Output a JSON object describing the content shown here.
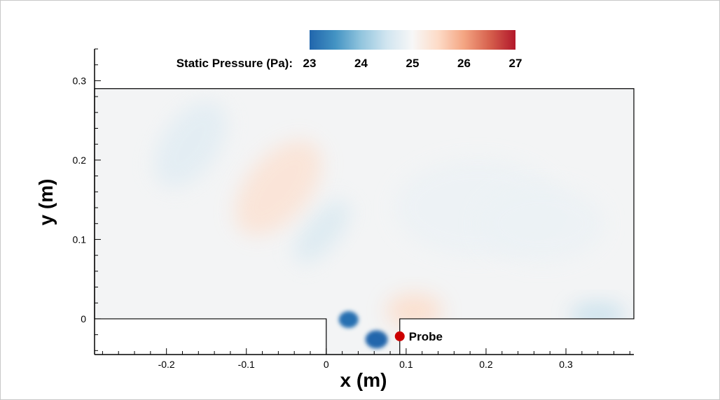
{
  "chart_data": {
    "type": "heatmap",
    "field": "Static Pressure (Pa)",
    "xlabel": "x (m)",
    "ylabel": "y (m)",
    "xlim": [
      -0.29,
      0.385
    ],
    "ylim": [
      -0.045,
      0.34
    ],
    "x_ticks": [
      -0.2,
      -0.1,
      0,
      0.1,
      0.2,
      0.3
    ],
    "x_tick_labels": [
      "-0.2",
      "-0.1",
      "0",
      "0.1",
      "0.2",
      "0.3"
    ],
    "y_ticks": [
      0,
      0.1,
      0.2,
      0.3
    ],
    "y_tick_labels": [
      "0",
      "0.1",
      "0.2",
      "0.3"
    ],
    "domain": {
      "outer": {
        "x": [
          -0.29,
          0.385
        ],
        "y": [
          0,
          0.29
        ]
      },
      "cavity": {
        "x": [
          0,
          0.092
        ],
        "y": [
          -0.045,
          0
        ]
      }
    },
    "colorbar": {
      "label": "Static Pressure (Pa):",
      "min": 23,
      "max": 27,
      "ticks": [
        23,
        24,
        25,
        26,
        27
      ],
      "tick_labels": [
        "23",
        "24",
        "25",
        "26",
        "27"
      ],
      "colors": [
        "#2166ac",
        "#4393c3",
        "#92c5de",
        "#d1e5f0",
        "#f7f7f7",
        "#fddbc7",
        "#f4a582",
        "#d6604d",
        "#b2182b"
      ]
    },
    "probe": {
      "label": "Probe",
      "x": 0.092,
      "y": -0.022,
      "color": "#cc0000"
    },
    "features": [
      {
        "x": 0.028,
        "y": -0.001,
        "pressure": 23.1
      },
      {
        "x": 0.063,
        "y": -0.026,
        "pressure": 23.0
      },
      {
        "x": -0.005,
        "y": 0.11,
        "pressure": 24.6
      },
      {
        "x": -0.17,
        "y": 0.22,
        "pressure": 24.7
      },
      {
        "x": -0.06,
        "y": 0.165,
        "pressure": 25.4
      },
      {
        "x": 0.34,
        "y": 0.005,
        "pressure": 24.4
      },
      {
        "x": 0.11,
        "y": 0.01,
        "pressure": 25.5
      },
      {
        "x": 0.19,
        "y": 0.14,
        "pressure": 24.85
      },
      {
        "x": 0.27,
        "y": 0.12,
        "pressure": 24.85
      }
    ]
  }
}
